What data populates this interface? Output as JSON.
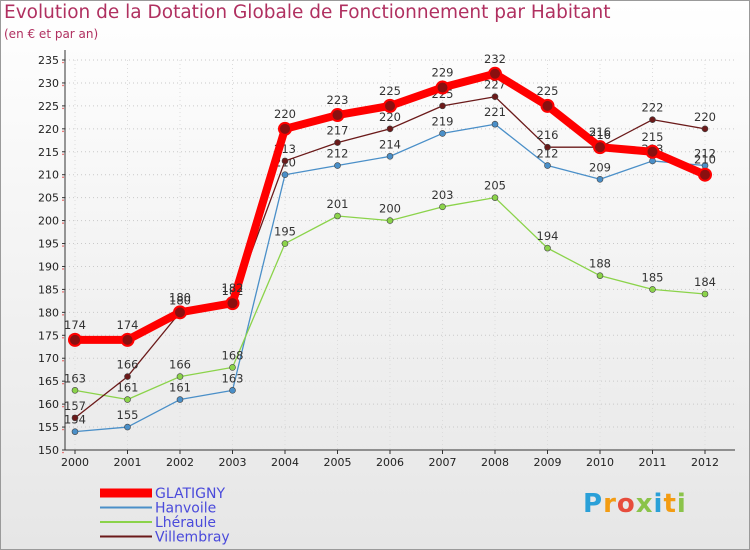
{
  "header": {
    "title": "Evolution de la Dotation Globale de Fonctionnement par Habitant",
    "subtitle": "(en € et par an)"
  },
  "logo": {
    "text": "Proxiti"
  },
  "chart_data": {
    "type": "line",
    "title": "Evolution de la Dotation Globale de Fonctionnement par Habitant",
    "subtitle": "(en € et par an)",
    "xlabel": "",
    "ylabel": "",
    "ylim": [
      150,
      235
    ],
    "ytick_step": 5,
    "grid": "horizontal dotted",
    "legend_position": "bottom-left",
    "categories": [
      "2000",
      "2001",
      "2002",
      "2003",
      "2004",
      "2005",
      "2006",
      "2007",
      "2008",
      "2009",
      "2010",
      "2011",
      "2012"
    ],
    "series": [
      {
        "name": "GLATIGNY",
        "color": "#ff0000",
        "values": [
          174,
          174,
          180,
          182,
          220,
          223,
          225,
          229,
          232,
          225,
          216,
          215,
          210
        ]
      },
      {
        "name": "Hanvoile",
        "color": "#4a8fc8",
        "values": [
          154,
          155,
          161,
          163,
          210,
          212,
          214,
          219,
          221,
          212,
          209,
          213,
          212
        ]
      },
      {
        "name": "Lhéraule",
        "color": "#8bd34a",
        "values": [
          163,
          161,
          166,
          168,
          195,
          201,
          200,
          203,
          205,
          194,
          188,
          185,
          184
        ]
      },
      {
        "name": "Villembray",
        "color": "#6b1a1a",
        "values": [
          157,
          166,
          180,
          182,
          213,
          217,
          220,
          225,
          227,
          216,
          216,
          222,
          220
        ]
      }
    ]
  }
}
